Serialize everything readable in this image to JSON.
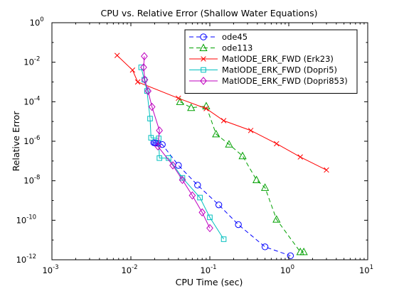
{
  "chart_data": {
    "type": "line",
    "title": "CPU vs. Relative Error (Shallow Water Equations)",
    "xlabel": "CPU Time (sec)",
    "ylabel": "Relative Error",
    "xscale": "log",
    "yscale": "log",
    "xlim": [
      0.001,
      10
    ],
    "ylim": [
      1e-12,
      1
    ],
    "x_ticks": [
      {
        "value": 0.001,
        "base": "10",
        "exp": "-3"
      },
      {
        "value": 0.01,
        "base": "10",
        "exp": "-2"
      },
      {
        "value": 0.1,
        "base": "10",
        "exp": "-1"
      },
      {
        "value": 1,
        "base": "10",
        "exp": "0"
      },
      {
        "value": 10,
        "base": "10",
        "exp": "1"
      }
    ],
    "y_ticks": [
      {
        "value": 1e-12,
        "base": "10",
        "exp": "-12"
      },
      {
        "value": 1e-10,
        "base": "10",
        "exp": "-10"
      },
      {
        "value": 1e-08,
        "base": "10",
        "exp": "-8"
      },
      {
        "value": 1e-06,
        "base": "10",
        "exp": "-6"
      },
      {
        "value": 0.0001,
        "base": "10",
        "exp": "-4"
      },
      {
        "value": 0.01,
        "base": "10",
        "exp": "-2"
      },
      {
        "value": 1,
        "base": "10",
        "exp": "0"
      }
    ],
    "grid": false,
    "legend_position": "top-right",
    "series": [
      {
        "name": "ode45",
        "color": "#0000ff",
        "dash": "dashed",
        "marker": "circle",
        "x": [
          0.0195,
          0.0202,
          0.021,
          0.022,
          0.025,
          0.04,
          0.07,
          0.13,
          0.23,
          0.5,
          1.05
        ],
        "y": [
          8.5e-07,
          8.3e-07,
          8.1e-07,
          7.9e-07,
          6.8e-07,
          6e-08,
          6e-09,
          6e-10,
          6e-11,
          4.5e-12,
          1.6e-12
        ]
      },
      {
        "name": "ode113",
        "color": "#00a000",
        "dash": "dashed",
        "marker": "triangle",
        "x": [
          0.042,
          0.058,
          0.09,
          0.12,
          0.175,
          0.26,
          0.39,
          0.5,
          0.7,
          1.4,
          1.55
        ],
        "y": [
          0.0001,
          5e-05,
          6e-05,
          2.3e-06,
          7e-07,
          1.8e-07,
          1.1e-08,
          4.5e-09,
          1.1e-10,
          2.5e-12,
          2.5e-12
        ]
      },
      {
        "name": "MatlODE_ERK_FWD (Erk23)",
        "color": "#ff0000",
        "dash": "solid",
        "marker": "x",
        "x": [
          0.0067,
          0.0105,
          0.0122,
          0.04,
          0.09,
          0.15,
          0.33,
          0.7,
          1.4,
          3.0
        ],
        "y": [
          0.022,
          0.004,
          0.001,
          0.00015,
          4.5e-05,
          1.1e-05,
          3.5e-06,
          7.5e-07,
          1.6e-07,
          3.5e-08
        ]
      },
      {
        "name": "MatlODE_ERK_FWD (Dopri5)",
        "color": "#00bfbf",
        "dash": "solid",
        "marker": "square",
        "x": [
          0.0135,
          0.0148,
          0.016,
          0.0175,
          0.018,
          0.0225,
          0.023,
          0.03,
          0.045,
          0.075,
          0.1,
          0.15
        ],
        "y": [
          0.0055,
          0.0013,
          0.00035,
          1.4e-05,
          1.5e-06,
          1.4e-06,
          1.4e-07,
          1.4e-07,
          1.4e-08,
          1.4e-09,
          1.4e-10,
          1.1e-11
        ]
      },
      {
        "name": "MatlODE_ERK_FWD (Dopri853)",
        "color": "#bf00bf",
        "dash": "solid",
        "marker": "diamond",
        "x": [
          0.0148,
          0.0145,
          0.015,
          0.0165,
          0.0185,
          0.023,
          0.022,
          0.034,
          0.045,
          0.06,
          0.08,
          0.1
        ],
        "y": [
          0.02,
          0.0055,
          0.0013,
          0.00035,
          5.5e-05,
          3.5e-06,
          5.5e-07,
          6e-08,
          1.1e-08,
          1.8e-09,
          2.5e-10,
          4e-11
        ]
      }
    ]
  }
}
